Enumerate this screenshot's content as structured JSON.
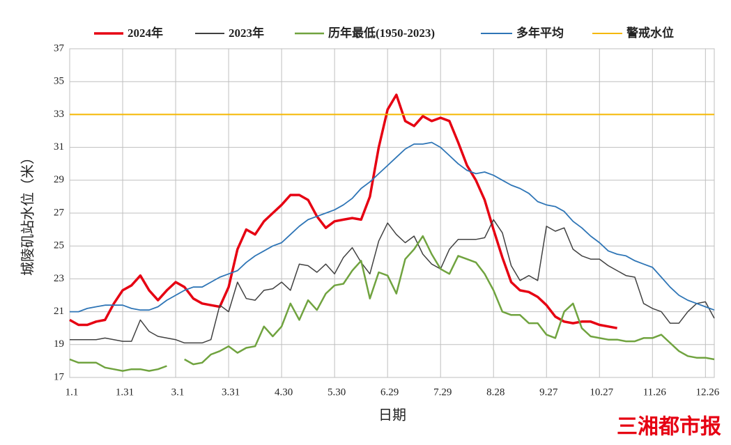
{
  "chart_data": {
    "type": "line",
    "x_label": "日期",
    "y_label": "城陵矶站水位（米）",
    "watermark": "三湘都市报",
    "xlim": [
      0,
      365
    ],
    "xticks": [
      {
        "value": 0,
        "label": "1.1"
      },
      {
        "value": 30,
        "label": "1.31"
      },
      {
        "value": 60,
        "label": "3.1"
      },
      {
        "value": 90,
        "label": "3.31"
      },
      {
        "value": 120,
        "label": "4.30"
      },
      {
        "value": 150,
        "label": "5.30"
      },
      {
        "value": 180,
        "label": "6.29"
      },
      {
        "value": 210,
        "label": "7.29"
      },
      {
        "value": 240,
        "label": "8.28"
      },
      {
        "value": 270,
        "label": "9.27"
      },
      {
        "value": 300,
        "label": "10.27"
      },
      {
        "value": 330,
        "label": "11.26"
      },
      {
        "value": 360,
        "label": "12.26"
      }
    ],
    "ylim": [
      17,
      37
    ],
    "yticks": [
      17,
      19,
      21,
      23,
      25,
      27,
      29,
      31,
      33,
      35,
      37
    ],
    "grid": true,
    "x": [
      0,
      5,
      10,
      15,
      20,
      25,
      30,
      35,
      40,
      45,
      50,
      55,
      60,
      65,
      70,
      75,
      80,
      85,
      90,
      95,
      100,
      105,
      110,
      115,
      120,
      125,
      130,
      135,
      140,
      145,
      150,
      155,
      160,
      165,
      170,
      175,
      180,
      185,
      190,
      195,
      200,
      205,
      210,
      215,
      220,
      225,
      230,
      235,
      240,
      245,
      250,
      255,
      260,
      265,
      270,
      275,
      280,
      285,
      290,
      295,
      300,
      305,
      310,
      315,
      320,
      325,
      330,
      335,
      340,
      345,
      350,
      355,
      360,
      365
    ],
    "series": [
      {
        "name": "2024年",
        "color": "#e60012",
        "width": 3.5,
        "values": [
          20.5,
          20.2,
          20.2,
          20.4,
          20.5,
          21.5,
          22.3,
          22.6,
          23.2,
          22.3,
          21.7,
          22.3,
          22.8,
          22.5,
          21.8,
          21.5,
          21.4,
          21.3,
          22.5,
          24.8,
          26.0,
          25.7,
          26.5,
          27.0,
          27.5,
          28.1,
          28.1,
          27.8,
          26.8,
          26.1,
          26.5,
          26.6,
          26.7,
          26.6,
          28.0,
          31.0,
          33.3,
          34.2,
          32.6,
          32.3,
          32.9,
          32.6,
          32.8,
          32.6,
          31.3,
          29.9,
          29.0,
          27.8,
          26.0,
          24.3,
          22.8,
          22.3,
          22.2,
          21.9,
          21.4,
          20.7,
          20.4,
          20.3,
          20.4,
          20.4,
          20.2,
          20.1,
          20.0,
          null,
          null,
          null,
          null,
          null,
          null,
          null,
          null,
          null,
          null,
          null
        ]
      },
      {
        "name": "2023年",
        "color": "#404040",
        "width": 1.5,
        "values": [
          19.3,
          19.3,
          19.3,
          19.3,
          19.4,
          19.3,
          19.2,
          19.2,
          20.5,
          19.8,
          19.5,
          19.4,
          19.3,
          19.1,
          19.1,
          19.1,
          19.3,
          21.4,
          21.0,
          22.8,
          21.8,
          21.7,
          22.3,
          22.4,
          22.8,
          22.3,
          23.9,
          23.8,
          23.4,
          23.9,
          23.3,
          24.3,
          24.9,
          24.0,
          23.3,
          25.3,
          26.4,
          25.7,
          25.2,
          25.6,
          24.5,
          23.9,
          23.6,
          24.8,
          25.4,
          25.4,
          25.4,
          25.5,
          26.6,
          25.8,
          23.8,
          22.9,
          23.2,
          22.9,
          26.2,
          25.9,
          26.1,
          24.8,
          24.4,
          24.2,
          24.2,
          23.8,
          23.5,
          23.2,
          23.1,
          21.5,
          21.2,
          21.0,
          20.3,
          20.3,
          21.0,
          21.5,
          21.6,
          20.6
        ]
      },
      {
        "name": "历年最低(1950-2023)",
        "color": "#70a33f",
        "width": 2.5,
        "values": [
          18.1,
          17.9,
          17.9,
          17.9,
          17.6,
          17.5,
          17.4,
          17.5,
          17.5,
          17.4,
          17.5,
          17.7,
          null,
          18.1,
          17.8,
          17.9,
          18.4,
          18.6,
          18.9,
          18.5,
          18.8,
          18.9,
          20.1,
          19.5,
          20.1,
          21.5,
          20.5,
          21.7,
          21.1,
          22.1,
          22.6,
          22.7,
          23.5,
          24.1,
          21.8,
          23.4,
          23.2,
          22.1,
          24.2,
          24.8,
          25.6,
          24.5,
          23.6,
          23.3,
          24.4,
          24.2,
          24.0,
          23.3,
          22.3,
          21.0,
          20.8,
          20.8,
          20.3,
          20.3,
          19.6,
          19.4,
          21.0,
          21.5,
          20.0,
          19.5,
          19.4,
          19.3,
          19.3,
          19.2,
          19.2,
          19.4,
          19.4,
          19.6,
          19.1,
          18.6,
          18.3,
          18.2,
          18.2,
          18.1
        ]
      },
      {
        "name": "多年平均",
        "color": "#2e75b6",
        "width": 1.8,
        "values": [
          21.0,
          21.0,
          21.2,
          21.3,
          21.4,
          21.4,
          21.4,
          21.2,
          21.1,
          21.1,
          21.3,
          21.7,
          22.0,
          22.3,
          22.5,
          22.5,
          22.8,
          23.1,
          23.3,
          23.5,
          24.0,
          24.4,
          24.7,
          25.0,
          25.2,
          25.7,
          26.2,
          26.6,
          26.8,
          27.0,
          27.2,
          27.5,
          27.9,
          28.5,
          28.9,
          29.4,
          29.9,
          30.4,
          30.9,
          31.2,
          31.2,
          31.3,
          31.0,
          30.5,
          30.0,
          29.6,
          29.4,
          29.5,
          29.3,
          29.0,
          28.7,
          28.5,
          28.2,
          27.7,
          27.5,
          27.4,
          27.1,
          26.5,
          26.1,
          25.6,
          25.2,
          24.7,
          24.5,
          24.4,
          24.1,
          23.9,
          23.7,
          23.1,
          22.5,
          22.0,
          21.7,
          21.5,
          21.3,
          21.1
        ]
      }
    ],
    "reference_line": {
      "name": "警戒水位",
      "value": 33,
      "color": "#f5b800"
    }
  }
}
